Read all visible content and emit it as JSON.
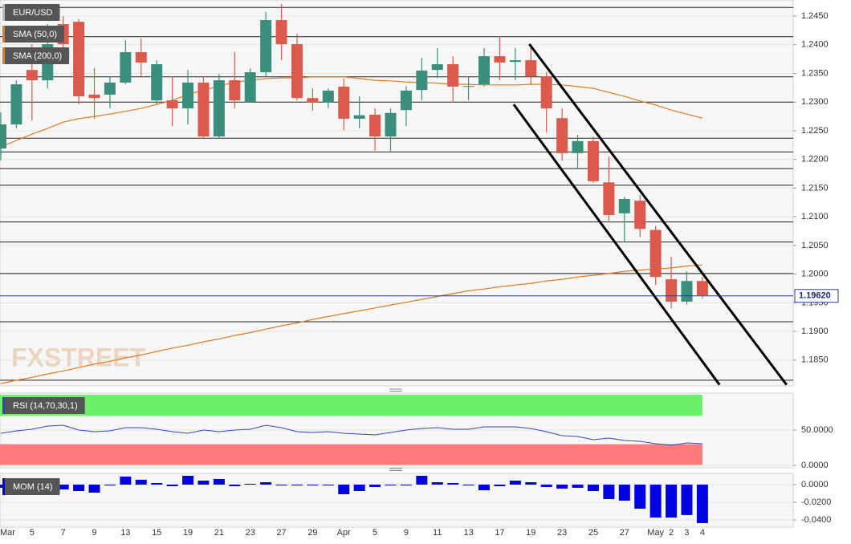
{
  "chart_data": [
    {
      "type": "candlestick",
      "categories": [
        "Mar",
        null,
        "5",
        null,
        "7",
        null,
        "9",
        null,
        "13",
        null,
        "15",
        null,
        "19",
        null,
        "21",
        null,
        "23",
        null,
        "27",
        null,
        "29",
        null,
        "Apr",
        null,
        "5",
        null,
        "9",
        null,
        "11",
        null,
        "13",
        null,
        "17",
        null,
        "19",
        null,
        "23",
        null,
        "25",
        null,
        "27",
        null,
        "May",
        "2",
        "3",
        "4"
      ],
      "series": [
        {
          "name": "EUR/USD",
          "up_color": "#3a8f7c",
          "down_color": "#dc5a4b",
          "open": [
            1.2219,
            1.2261,
            1.2356,
            1.2338,
            1.2436,
            1.244,
            1.2313,
            1.2313,
            1.2334,
            1.2387,
            1.2303,
            1.2303,
            1.2289,
            1.2334,
            1.224,
            1.2338,
            1.23,
            1.2352,
            1.2443,
            1.2401,
            1.2307,
            1.2299,
            1.2327,
            1.2271,
            1.2278,
            1.224,
            1.2286,
            1.2321,
            1.2356,
            1.2366,
            1.2327,
            1.2331,
            1.238,
            1.237,
            1.2373,
            1.2345,
            1.2272,
            1.2211,
            1.2232,
            1.216,
            1.2106,
            1.2128,
            1.2077,
            1.1991,
            1.1952,
            1.1988
          ],
          "high": [
            1.2282,
            1.2338,
            1.2401,
            1.2436,
            1.245,
            1.2445,
            1.2359,
            1.2345,
            1.2408,
            1.2411,
            1.2373,
            1.2345,
            1.2356,
            1.2345,
            1.2349,
            1.2387,
            1.2359,
            1.2457,
            1.2471,
            1.2419,
            1.2324,
            1.2324,
            1.2341,
            1.231,
            1.2289,
            1.2289,
            1.2328,
            1.2377,
            1.2394,
            1.238,
            1.2345,
            1.2394,
            1.2415,
            1.2394,
            1.2401,
            1.2352,
            1.2289,
            1.2243,
            1.224,
            1.2205,
            1.2135,
            1.2138,
            1.2084,
            1.203,
            1.2005,
            1.1995
          ],
          "low": [
            1.2198,
            1.2254,
            1.2268,
            1.2324,
            1.238,
            1.2296,
            1.2271,
            1.2289,
            1.2331,
            1.2345,
            1.2296,
            1.2258,
            1.2261,
            1.2237,
            1.2237,
            1.2289,
            1.2299,
            1.2345,
            1.2373,
            1.2303,
            1.2285,
            1.2289,
            1.2251,
            1.2254,
            1.2215,
            1.2212,
            1.2258,
            1.2303,
            1.2342,
            1.2299,
            1.2303,
            1.2327,
            1.2338,
            1.2338,
            1.2331,
            1.2247,
            1.2198,
            1.2184,
            1.2159,
            1.2093,
            1.2056,
            1.2065,
            1.1981,
            1.194,
            1.1947,
            1.1958
          ],
          "close": [
            1.2261,
            1.2331,
            1.2338,
            1.2401,
            1.2401,
            1.231,
            1.2307,
            1.2334,
            1.2387,
            1.2369,
            1.2366,
            1.2289,
            1.2334,
            1.224,
            1.2338,
            1.2303,
            1.2352,
            1.2443,
            1.2401,
            1.2307,
            1.2299,
            1.232,
            1.2271,
            1.2277,
            1.224,
            1.2281,
            1.232,
            1.2355,
            1.2366,
            1.2327,
            1.2328,
            1.238,
            1.2369,
            1.2373,
            1.2345,
            1.2289,
            1.2211,
            1.2232,
            1.2162,
            1.2103,
            1.2131,
            1.2079,
            1.1995,
            1.1952,
            1.1988,
            1.1963
          ]
        },
        {
          "name": "SMA (50,0)",
          "color": "#e8781e",
          "values": [
            1.2222,
            1.2233,
            1.2244,
            1.2254,
            1.2265,
            1.2271,
            1.2275,
            1.2279,
            1.2284,
            1.2289,
            1.2296,
            1.2303,
            1.2313,
            1.2321,
            1.2328,
            1.2335,
            1.2338,
            1.2341,
            1.2342,
            1.2342,
            1.2344,
            1.2344,
            1.2344,
            1.2341,
            1.2338,
            1.2337,
            1.2335,
            1.2334,
            1.2333,
            1.2331,
            1.2331,
            1.233,
            1.233,
            1.233,
            1.2331,
            1.2331,
            1.233,
            1.2327,
            1.2324,
            1.2317,
            1.231,
            1.2302,
            1.2295,
            1.2286,
            1.2279,
            1.2272
          ]
        },
        {
          "name": "SMA (200,0)",
          "color": "#e8781e",
          "values": [
            1.1809,
            1.1815,
            1.182,
            1.1826,
            1.1831,
            1.1837,
            1.1843,
            1.1848,
            1.1854,
            1.1859,
            1.1865,
            1.1871,
            1.1876,
            1.1882,
            1.1887,
            1.1893,
            1.1898,
            1.1904,
            1.191,
            1.1915,
            1.1921,
            1.1926,
            1.1931,
            1.1936,
            1.1941,
            1.1946,
            1.1951,
            1.1956,
            1.1961,
            1.1966,
            1.1971,
            1.1974,
            1.1978,
            1.1981,
            1.1984,
            1.1988,
            1.1991,
            1.1995,
            1.1998,
            1.2001,
            1.2005,
            1.2007,
            1.2009,
            1.2011,
            1.2014,
            1.2016
          ]
        }
      ],
      "ylim": [
        1.1805,
        1.2478
      ],
      "yticks": [
        {
          "value": 1.185,
          "label": "1.1850"
        },
        {
          "value": 1.19,
          "label": "1.1900"
        },
        {
          "value": 1.195,
          "label": "1.1950"
        },
        {
          "value": 1.2,
          "label": "1.2000"
        },
        {
          "value": 1.205,
          "label": "1.2050"
        },
        {
          "value": 1.21,
          "label": "1.2100"
        },
        {
          "value": 1.215,
          "label": "1.2150"
        },
        {
          "value": 1.22,
          "label": "1.2200"
        },
        {
          "value": 1.225,
          "label": "1.2250"
        },
        {
          "value": 1.23,
          "label": "1.2300"
        },
        {
          "value": 1.235,
          "label": "1.2350"
        },
        {
          "value": 1.24,
          "label": "1.2400"
        },
        {
          "value": 1.245,
          "label": "1.2450"
        }
      ],
      "grid": true,
      "levels": [
        1.2465,
        1.2414,
        1.2344,
        1.23,
        1.2237,
        1.2213,
        1.2184,
        1.2155,
        1.2091,
        1.2056,
        1.2001,
        1.1917,
        1.1815
      ],
      "trendlines": [
        {
          "x": [
            33.9,
            50.4
          ],
          "y": [
            1.2401,
            1.1807
          ]
        },
        {
          "x": [
            32.9,
            46.1
          ],
          "y": [
            1.2296,
            1.1807
          ]
        }
      ],
      "last_price": {
        "value": 1.1962,
        "label": "1.19620"
      },
      "watermark": "FXSTREET"
    },
    {
      "type": "line",
      "series": [
        {
          "name": "RSI (14,70,30,1)",
          "color": "#3344cc",
          "values": [
            45.5,
            48.9,
            51.1,
            55.7,
            56.8,
            50.0,
            47.7,
            48.9,
            53.4,
            53.4,
            51.1,
            47.7,
            45.5,
            50.0,
            47.7,
            50.0,
            51.1,
            56.8,
            53.4,
            47.7,
            46.6,
            47.7,
            45.5,
            44.3,
            43.2,
            46.6,
            50.0,
            52.3,
            53.4,
            51.1,
            51.1,
            54.5,
            54.5,
            54.5,
            52.3,
            47.7,
            42.0,
            40.9,
            36.4,
            38.6,
            35.2,
            34.1,
            30.7,
            28.4,
            31.8,
            30.7
          ]
        }
      ],
      "ylim": [
        0,
        100
      ],
      "yticks": [
        {
          "value": 50,
          "label": "50.0000"
        },
        {
          "value": 0,
          "label": "0.0000"
        }
      ],
      "bands": [
        {
          "range": [
            70,
            100
          ],
          "color": "#6cf06c"
        },
        {
          "range": [
            0,
            30
          ],
          "color": "#ff7b7b"
        }
      ]
    },
    {
      "type": "bar",
      "series": [
        {
          "name": "MOM (14)",
          "color": "#0000e0",
          "values": [
            -0.0036,
            -0.0018,
            -0.0027,
            -0.0045,
            -0.0055,
            -0.0073,
            -0.0091,
            -0.0009,
            0.0091,
            0.0055,
            0.0018,
            -0.0018,
            0.01,
            0.0045,
            0.0064,
            -0.0018,
            0.0009,
            0.0027,
            -0.0009,
            -0.0005,
            -0.0005,
            -0.0005,
            -0.0109,
            -0.0073,
            -0.0027,
            -0.0009,
            -0.0009,
            0.01,
            0.0027,
            0.0018,
            -0.0009,
            -0.0064,
            -0.0018,
            0.0045,
            0.0027,
            -0.0027,
            -0.0045,
            -0.0036,
            -0.0073,
            -0.0164,
            -0.0182,
            -0.0273,
            -0.0373,
            -0.0373,
            -0.0345,
            -0.0436
          ]
        }
      ],
      "ylim": [
        -0.0464,
        0.0109
      ],
      "yticks": [
        {
          "value": 0,
          "label": "0.0000"
        },
        {
          "value": -0.02,
          "label": "-0.0200"
        },
        {
          "value": -0.04,
          "label": "-0.0400"
        }
      ]
    }
  ]
}
